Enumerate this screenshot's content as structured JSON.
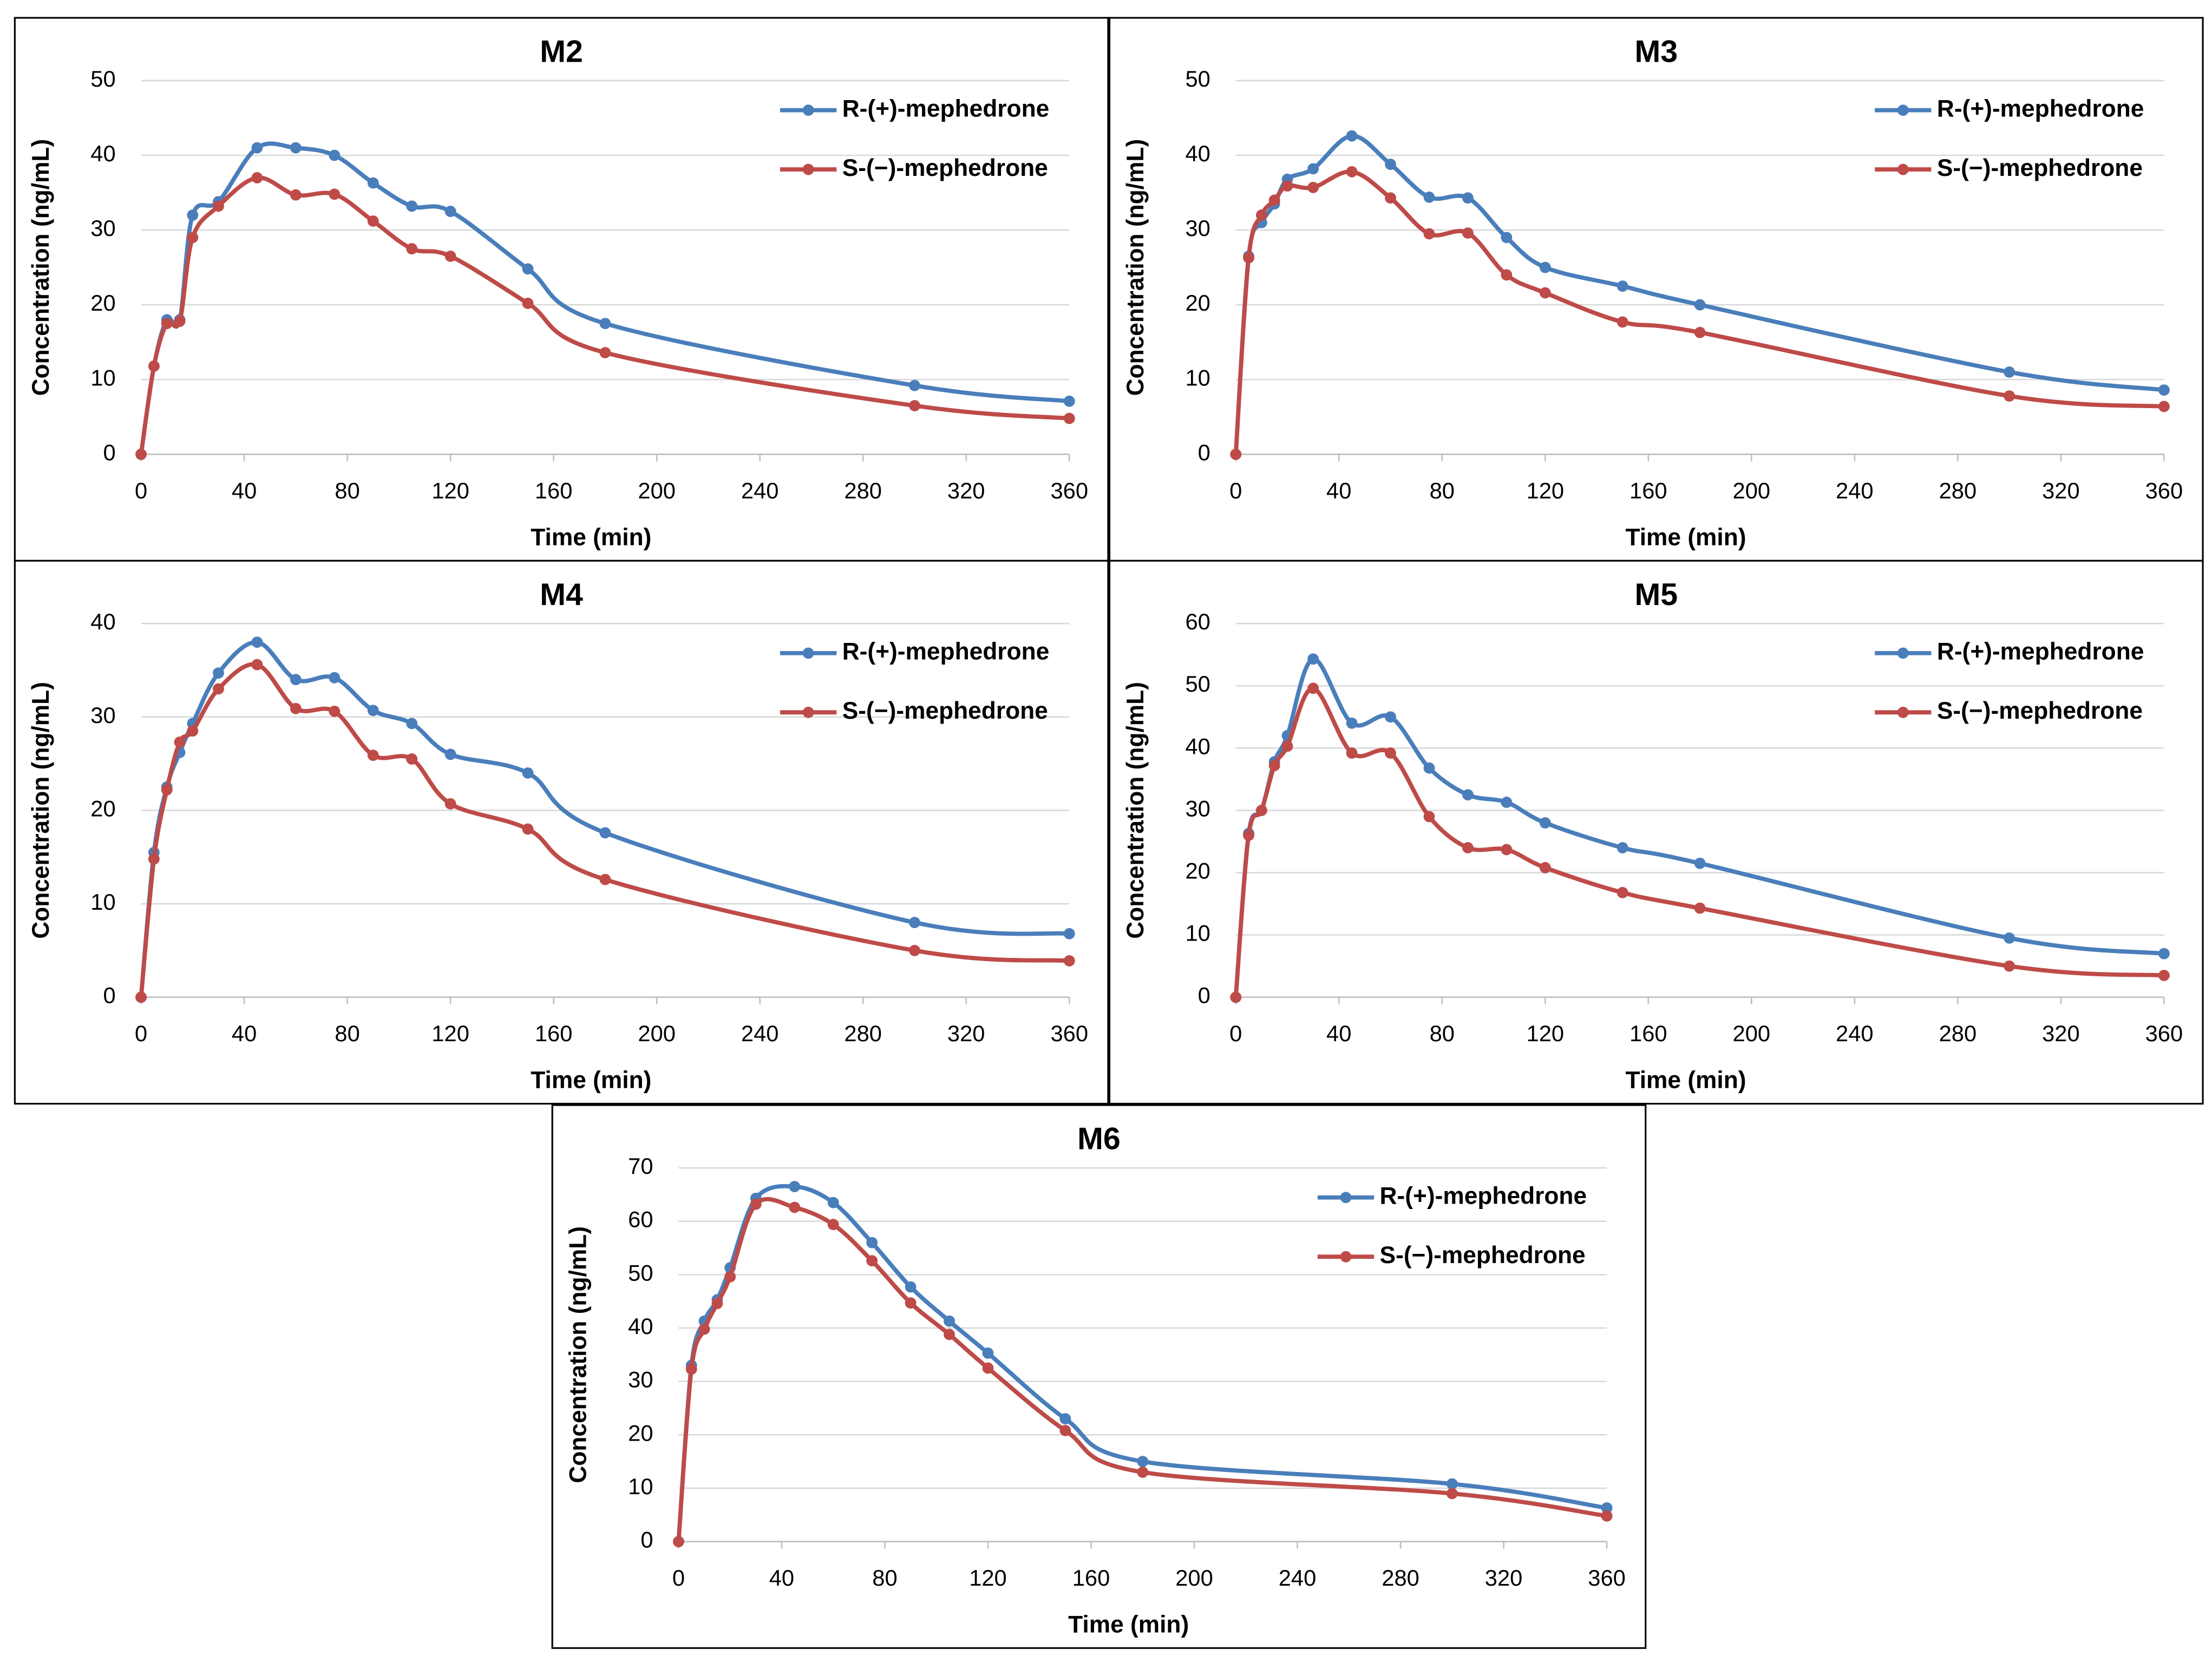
{
  "chart_data": [
    {
      "type": "line",
      "title": "M2",
      "x_label": "Time (min)",
      "y_label": "Concentration (ng/mL)",
      "x": [
        0,
        5,
        10,
        15,
        20,
        30,
        45,
        60,
        75,
        90,
        105,
        120,
        150,
        180,
        300,
        360
      ],
      "series": [
        {
          "name": "R-(+)-mephedrone",
          "color": "#4a7ebb",
          "values": [
            0,
            11.8,
            18,
            18,
            32,
            33.8,
            41,
            41,
            40,
            36.3,
            33.2,
            32.5,
            24.8,
            17.5,
            9.2,
            7.1
          ]
        },
        {
          "name": "S-(−)-mephedrone",
          "color": "#be4b48",
          "values": [
            0,
            11.8,
            17.5,
            17.8,
            29,
            33.2,
            37,
            34.7,
            34.8,
            31.2,
            27.5,
            26.5,
            20.2,
            13.6,
            6.5,
            4.8
          ]
        }
      ],
      "xlim": [
        0,
        360
      ],
      "xticks": [
        0,
        40,
        80,
        120,
        160,
        200,
        240,
        280,
        320,
        360
      ],
      "ylim": [
        0,
        50
      ],
      "yticks": [
        0,
        10,
        20,
        30,
        40,
        50
      ],
      "grid": true,
      "legend": "upper right"
    },
    {
      "type": "line",
      "title": "M3",
      "x_label": "Time (min)",
      "y_label": "Concentration (ng/mL)",
      "x": [
        0,
        5,
        10,
        15,
        20,
        30,
        45,
        60,
        75,
        90,
        105,
        120,
        150,
        180,
        300,
        360
      ],
      "series": [
        {
          "name": "R-(+)-mephedrone",
          "color": "#4a7ebb",
          "values": [
            0,
            26.5,
            31,
            33.5,
            36.8,
            38.2,
            42.6,
            38.8,
            34.4,
            34.3,
            29,
            25,
            22.5,
            20,
            11,
            8.6
          ]
        },
        {
          "name": "S-(−)-mephedrone",
          "color": "#be4b48",
          "values": [
            0,
            26.3,
            32,
            34,
            35.9,
            35.7,
            37.8,
            34.3,
            29.5,
            29.6,
            24,
            21.6,
            17.7,
            16.3,
            7.8,
            6.4
          ]
        }
      ],
      "xlim": [
        0,
        360
      ],
      "xticks": [
        0,
        40,
        80,
        120,
        160,
        200,
        240,
        280,
        320,
        360
      ],
      "ylim": [
        0,
        50
      ],
      "yticks": [
        0,
        10,
        20,
        30,
        40,
        50
      ],
      "grid": true,
      "legend": "upper right"
    },
    {
      "type": "line",
      "title": "M4",
      "x_label": "Time (min)",
      "y_label": "Concentration (ng/mL)",
      "x": [
        0,
        5,
        10,
        15,
        20,
        30,
        45,
        60,
        75,
        90,
        105,
        120,
        150,
        180,
        300,
        360
      ],
      "series": [
        {
          "name": "R-(+)-mephedrone",
          "color": "#4a7ebb",
          "values": [
            0,
            15.5,
            22.5,
            26.2,
            29.3,
            34.7,
            38,
            34,
            34.2,
            30.7,
            29.3,
            26,
            24,
            17.6,
            8,
            6.8
          ]
        },
        {
          "name": "S-(−)-mephedrone",
          "color": "#be4b48",
          "values": [
            0,
            14.8,
            22.2,
            27.3,
            28.5,
            33,
            35.6,
            30.9,
            30.6,
            25.9,
            25.5,
            20.7,
            18,
            12.6,
            5,
            3.9
          ]
        }
      ],
      "xlim": [
        0,
        360
      ],
      "xticks": [
        0,
        40,
        80,
        120,
        160,
        200,
        240,
        280,
        320,
        360
      ],
      "ylim": [
        0,
        40
      ],
      "yticks": [
        0,
        10,
        20,
        30,
        40
      ],
      "grid": true,
      "legend": "upper right"
    },
    {
      "type": "line",
      "title": "M5",
      "x_label": "Time (min)",
      "y_label": "Concentration (ng/mL)",
      "x": [
        0,
        5,
        10,
        15,
        20,
        30,
        45,
        60,
        75,
        90,
        105,
        120,
        150,
        180,
        300,
        360
      ],
      "series": [
        {
          "name": "R-(+)-mephedrone",
          "color": "#4a7ebb",
          "values": [
            0,
            26.3,
            30,
            37.8,
            42,
            54.3,
            44,
            45,
            36.8,
            32.5,
            31.3,
            28,
            24,
            21.5,
            9.5,
            7
          ]
        },
        {
          "name": "S-(−)-mephedrone",
          "color": "#be4b48",
          "values": [
            0,
            26,
            30,
            37.2,
            40.3,
            49.6,
            39.2,
            39.2,
            29,
            24,
            23.7,
            20.8,
            16.8,
            14.3,
            5,
            3.5
          ]
        }
      ],
      "xlim": [
        0,
        360
      ],
      "xticks": [
        0,
        40,
        80,
        120,
        160,
        200,
        240,
        280,
        320,
        360
      ],
      "ylim": [
        0,
        60
      ],
      "yticks": [
        0,
        10,
        20,
        30,
        40,
        50,
        60
      ],
      "grid": true,
      "legend": "upper right"
    },
    {
      "type": "line",
      "title": "M6",
      "x_label": "Time (min)",
      "y_label": "Concentration (ng/mL)",
      "x": [
        0,
        5,
        10,
        15,
        20,
        30,
        45,
        60,
        75,
        90,
        105,
        120,
        150,
        180,
        300,
        360
      ],
      "series": [
        {
          "name": "R-(+)-mephedrone",
          "color": "#4a7ebb",
          "values": [
            0,
            33,
            41.3,
            45.3,
            51.3,
            64.3,
            66.5,
            63.5,
            56,
            47.7,
            41.3,
            35.3,
            23,
            15,
            10.8,
            6.3
          ]
        },
        {
          "name": "S-(−)-mephedrone",
          "color": "#be4b48",
          "values": [
            0,
            32.3,
            39.8,
            44.6,
            49.6,
            63.2,
            62.6,
            59.4,
            52.6,
            44.7,
            38.8,
            32.5,
            20.8,
            13,
            9,
            4.8
          ]
        }
      ],
      "xlim": [
        0,
        360
      ],
      "xticks": [
        0,
        40,
        80,
        120,
        160,
        200,
        240,
        280,
        320,
        360
      ],
      "ylim": [
        0,
        70
      ],
      "yticks": [
        0,
        10,
        20,
        30,
        40,
        50,
        60,
        70
      ],
      "grid": true,
      "legend": "upper right"
    }
  ]
}
